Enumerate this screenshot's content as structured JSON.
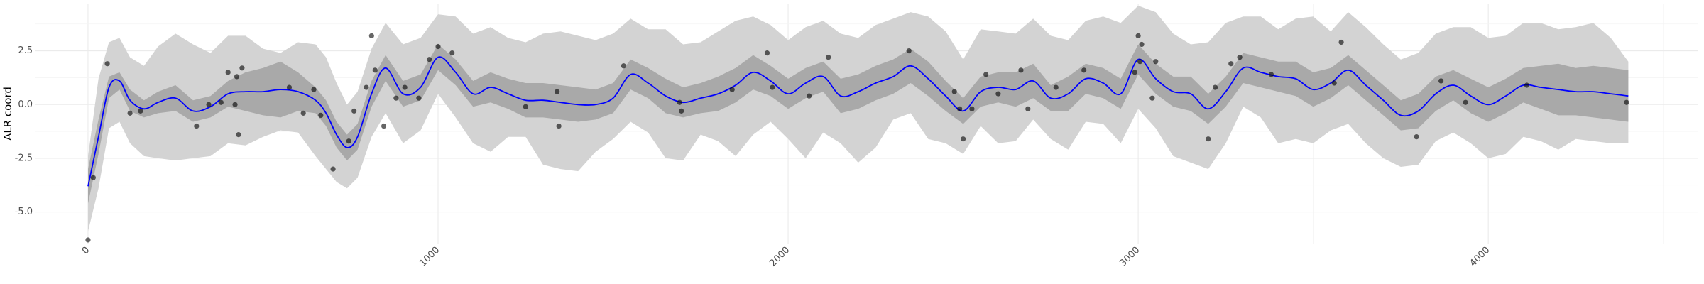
{
  "chart_data": {
    "type": "line",
    "title": "",
    "xlabel": "",
    "ylabel": "ALR coord",
    "xlim": [
      -150,
      4600
    ],
    "ylim": [
      -6.5,
      4.7
    ],
    "x_ticks": [
      {
        "value": 0,
        "label": "0"
      },
      {
        "value": 1000,
        "label": "1000"
      },
      {
        "value": 2000,
        "label": "2000"
      },
      {
        "value": 3000,
        "label": "3000"
      },
      {
        "value": 4000,
        "label": "4000"
      }
    ],
    "y_ticks": [
      {
        "value": -5.0,
        "label": "-5.0"
      },
      {
        "value": -2.5,
        "label": "-2.5"
      },
      {
        "value": 0.0,
        "label": "0.0"
      },
      {
        "value": 2.5,
        "label": "2.5"
      }
    ],
    "grid": true,
    "legend": "none",
    "series": [
      {
        "type": "line",
        "color": "#0000ff",
        "x": [
          0,
          30,
          60,
          90,
          120,
          160,
          200,
          250,
          300,
          350,
          400,
          450,
          500,
          550,
          600,
          650,
          680,
          710,
          740,
          770,
          810,
          850,
          900,
          950,
          1000,
          1050,
          1100,
          1150,
          1200,
          1250,
          1300,
          1350,
          1400,
          1450,
          1500,
          1550,
          1600,
          1650,
          1700,
          1750,
          1800,
          1850,
          1900,
          1950,
          2000,
          2050,
          2100,
          2150,
          2200,
          2250,
          2300,
          2350,
          2400,
          2450,
          2500,
          2550,
          2600,
          2650,
          2700,
          2750,
          2800,
          2850,
          2900,
          2950,
          3000,
          3050,
          3100,
          3150,
          3200,
          3250,
          3300,
          3350,
          3400,
          3450,
          3500,
          3550,
          3600,
          3650,
          3700,
          3750,
          3800,
          3850,
          3900,
          3950,
          4000,
          4050,
          4100,
          4150,
          4200,
          4250,
          4300,
          4350,
          4400
        ],
        "y": [
          -3.8,
          -1.5,
          0.8,
          1.1,
          0.2,
          -0.2,
          0.1,
          0.3,
          -0.3,
          -0.1,
          0.5,
          0.6,
          0.6,
          0.7,
          0.6,
          0.2,
          -0.4,
          -1.4,
          -2.0,
          -1.5,
          0.5,
          1.7,
          0.5,
          0.8,
          2.2,
          1.5,
          0.5,
          0.8,
          0.5,
          0.2,
          0.2,
          0.1,
          0.0,
          0.0,
          0.3,
          1.4,
          1.0,
          0.4,
          0.1,
          0.3,
          0.5,
          0.9,
          1.5,
          1.1,
          0.5,
          1.0,
          1.3,
          0.4,
          0.6,
          1.0,
          1.3,
          1.8,
          1.2,
          0.4,
          -0.3,
          0.6,
          0.8,
          0.7,
          1.1,
          0.3,
          0.5,
          1.2,
          1.0,
          0.5,
          2.1,
          1.2,
          0.6,
          0.5,
          -0.2,
          0.6,
          1.7,
          1.5,
          1.3,
          1.2,
          0.7,
          1.0,
          1.6,
          0.9,
          0.2,
          -0.5,
          -0.3,
          0.5,
          0.9,
          0.4,
          0.0,
          0.4,
          0.9,
          0.8,
          0.7,
          0.6,
          0.6,
          0.5,
          0.4
        ]
      },
      {
        "type": "band",
        "fill": "#a9a9a9",
        "x": [
          0,
          30,
          60,
          90,
          120,
          160,
          200,
          250,
          300,
          350,
          400,
          450,
          500,
          550,
          600,
          650,
          680,
          710,
          740,
          770,
          810,
          850,
          900,
          950,
          1000,
          1050,
          1100,
          1150,
          1200,
          1250,
          1300,
          1350,
          1400,
          1450,
          1500,
          1550,
          1600,
          1650,
          1700,
          1750,
          1800,
          1850,
          1900,
          1950,
          2000,
          2050,
          2100,
          2150,
          2200,
          2250,
          2300,
          2350,
          2400,
          2450,
          2500,
          2550,
          2600,
          2650,
          2700,
          2750,
          2800,
          2850,
          2900,
          2950,
          3000,
          3050,
          3100,
          3150,
          3200,
          3250,
          3300,
          3350,
          3400,
          3450,
          3500,
          3550,
          3600,
          3650,
          3700,
          3750,
          3800,
          3850,
          3900,
          3950,
          4000,
          4050,
          4100,
          4150,
          4200,
          4250,
          4300,
          4350,
          4400
        ],
        "lower": [
          -4.6,
          -2.3,
          0.3,
          0.7,
          -0.3,
          -0.6,
          -0.4,
          -0.3,
          -0.8,
          -0.6,
          -0.1,
          -0.3,
          -0.5,
          -0.6,
          -0.3,
          -0.4,
          -1.0,
          -2.0,
          -2.6,
          -2.1,
          -0.1,
          1.1,
          -0.1,
          0.2,
          1.6,
          0.9,
          -0.1,
          0.1,
          -0.2,
          -0.6,
          -0.6,
          -0.7,
          -0.8,
          -0.7,
          -0.4,
          0.7,
          0.3,
          -0.4,
          -0.6,
          -0.4,
          -0.3,
          0.1,
          0.7,
          0.4,
          -0.2,
          0.3,
          0.6,
          -0.4,
          -0.2,
          0.2,
          0.5,
          1.0,
          0.4,
          -0.3,
          -0.9,
          -0.1,
          0.1,
          -0.1,
          0.3,
          -0.3,
          -0.3,
          0.5,
          0.3,
          -0.2,
          1.4,
          0.5,
          -0.1,
          -0.3,
          -0.9,
          -0.1,
          1.0,
          0.8,
          0.6,
          0.4,
          -0.1,
          0.3,
          0.9,
          0.2,
          -0.5,
          -1.2,
          -1.1,
          -0.3,
          0.2,
          -0.4,
          -0.8,
          -0.4,
          0.1,
          -0.2,
          -0.5,
          -0.5,
          -0.6,
          -0.7,
          -0.8
        ],
        "upper": [
          -3.0,
          -0.7,
          1.3,
          1.5,
          0.7,
          0.2,
          0.6,
          0.9,
          0.2,
          0.4,
          1.1,
          1.5,
          1.7,
          2.0,
          1.5,
          0.8,
          0.2,
          -0.8,
          -1.4,
          -0.9,
          1.1,
          2.3,
          1.1,
          1.4,
          2.8,
          2.1,
          1.1,
          1.5,
          1.2,
          1.0,
          1.0,
          0.9,
          0.8,
          0.7,
          1.0,
          2.1,
          1.7,
          1.2,
          0.8,
          1.0,
          1.3,
          1.7,
          2.3,
          1.8,
          1.2,
          1.7,
          2.0,
          1.2,
          1.4,
          1.8,
          2.1,
          2.6,
          2.0,
          1.1,
          0.3,
          1.3,
          1.5,
          1.5,
          1.9,
          0.9,
          1.3,
          1.9,
          1.7,
          1.2,
          2.8,
          1.9,
          1.3,
          1.3,
          0.5,
          1.3,
          2.4,
          2.2,
          2.0,
          2.0,
          1.5,
          1.7,
          2.3,
          1.6,
          0.9,
          0.2,
          0.5,
          1.3,
          1.6,
          1.2,
          0.8,
          1.2,
          1.7,
          1.8,
          1.9,
          1.7,
          1.8,
          1.7,
          1.6
        ]
      },
      {
        "type": "band",
        "fill": "#d3d3d3",
        "x": [
          0,
          30,
          60,
          90,
          120,
          160,
          200,
          250,
          300,
          350,
          400,
          450,
          500,
          550,
          600,
          650,
          680,
          710,
          740,
          770,
          810,
          850,
          900,
          950,
          1000,
          1050,
          1100,
          1150,
          1200,
          1250,
          1300,
          1350,
          1400,
          1450,
          1500,
          1550,
          1600,
          1650,
          1700,
          1750,
          1800,
          1850,
          1900,
          1950,
          2000,
          2050,
          2100,
          2150,
          2200,
          2250,
          2300,
          2350,
          2400,
          2450,
          2500,
          2550,
          2600,
          2650,
          2700,
          2750,
          2800,
          2850,
          2900,
          2950,
          3000,
          3050,
          3100,
          3150,
          3200,
          3250,
          3300,
          3350,
          3400,
          3450,
          3500,
          3550,
          3600,
          3650,
          3700,
          3750,
          3800,
          3850,
          3900,
          3950,
          4000,
          4050,
          4100,
          4150,
          4200,
          4250,
          4300,
          4350,
          4400
        ],
        "lower": [
          -5.9,
          -3.9,
          -1.1,
          -0.8,
          -1.8,
          -2.4,
          -2.5,
          -2.6,
          -2.5,
          -2.4,
          -1.8,
          -1.9,
          -1.5,
          -1.2,
          -1.3,
          -2.4,
          -3.0,
          -3.6,
          -3.9,
          -3.4,
          -1.5,
          -0.4,
          -1.8,
          -1.2,
          0.5,
          -0.6,
          -1.8,
          -2.2,
          -1.5,
          -1.5,
          -2.8,
          -3.0,
          -3.1,
          -2.2,
          -1.6,
          -0.8,
          -1.3,
          -2.5,
          -2.6,
          -1.4,
          -1.7,
          -2.4,
          -1.4,
          -0.8,
          -1.6,
          -2.5,
          -1.3,
          -1.8,
          -2.7,
          -2.0,
          -0.7,
          -0.4,
          -1.6,
          -1.8,
          -2.3,
          -1.0,
          -1.8,
          -1.7,
          -0.7,
          -1.6,
          -2.1,
          -0.8,
          -0.9,
          -1.8,
          -0.2,
          -1.1,
          -2.4,
          -2.7,
          -3.0,
          -1.8,
          -0.1,
          -0.6,
          -1.8,
          -1.6,
          -1.8,
          -1.2,
          -0.9,
          -1.8,
          -2.5,
          -2.9,
          -2.8,
          -1.7,
          -1.3,
          -1.8,
          -2.5,
          -2.3,
          -1.5,
          -1.7,
          -2.1,
          -1.6,
          -1.7,
          -1.8,
          -1.8
        ],
        "upper": [
          -2.4,
          1.2,
          2.9,
          3.1,
          2.2,
          1.8,
          2.7,
          3.3,
          2.8,
          2.4,
          3.2,
          3.2,
          2.6,
          2.4,
          2.9,
          2.8,
          2.2,
          1.0,
          0.0,
          0.6,
          2.6,
          3.8,
          2.8,
          3.1,
          4.2,
          4.1,
          3.3,
          3.6,
          3.1,
          2.9,
          3.3,
          3.4,
          3.2,
          3.0,
          3.3,
          4.0,
          3.5,
          3.5,
          2.8,
          2.9,
          3.4,
          3.9,
          4.1,
          3.7,
          3.0,
          3.6,
          3.9,
          3.3,
          3.1,
          3.7,
          4.0,
          4.3,
          4.1,
          3.4,
          2.1,
          3.5,
          3.4,
          3.3,
          4.0,
          3.2,
          3.0,
          3.9,
          4.1,
          3.8,
          4.6,
          4.3,
          3.3,
          2.8,
          2.9,
          3.8,
          4.1,
          4.1,
          3.5,
          4.0,
          4.1,
          3.4,
          4.3,
          3.6,
          2.8,
          2.1,
          2.4,
          3.3,
          3.6,
          3.6,
          3.1,
          3.2,
          3.8,
          3.8,
          3.5,
          3.6,
          3.8,
          3.1,
          2.0
        ]
      }
    ],
    "points": [
      {
        "x": 0,
        "y": -6.3
      },
      {
        "x": 15,
        "y": -3.4
      },
      {
        "x": 55,
        "y": 1.9
      },
      {
        "x": 120,
        "y": -0.4
      },
      {
        "x": 150,
        "y": -0.3
      },
      {
        "x": 310,
        "y": -1.0
      },
      {
        "x": 345,
        "y": 0.0
      },
      {
        "x": 380,
        "y": 0.1
      },
      {
        "x": 400,
        "y": 1.5
      },
      {
        "x": 420,
        "y": 0.0
      },
      {
        "x": 425,
        "y": 1.3
      },
      {
        "x": 430,
        "y": -1.4
      },
      {
        "x": 440,
        "y": 1.7
      },
      {
        "x": 575,
        "y": 0.8
      },
      {
        "x": 615,
        "y": -0.4
      },
      {
        "x": 645,
        "y": 0.7
      },
      {
        "x": 665,
        "y": -0.5
      },
      {
        "x": 700,
        "y": -3.0
      },
      {
        "x": 745,
        "y": -1.7
      },
      {
        "x": 760,
        "y": -0.3
      },
      {
        "x": 795,
        "y": 0.8
      },
      {
        "x": 810,
        "y": 3.2
      },
      {
        "x": 820,
        "y": 1.6
      },
      {
        "x": 845,
        "y": -1.0
      },
      {
        "x": 880,
        "y": 0.3
      },
      {
        "x": 905,
        "y": 0.8
      },
      {
        "x": 945,
        "y": 0.3
      },
      {
        "x": 975,
        "y": 2.1
      },
      {
        "x": 1000,
        "y": 2.7
      },
      {
        "x": 1040,
        "y": 2.4
      },
      {
        "x": 1250,
        "y": -0.1
      },
      {
        "x": 1340,
        "y": 0.6
      },
      {
        "x": 1345,
        "y": -1.0
      },
      {
        "x": 1530,
        "y": 1.8
      },
      {
        "x": 1690,
        "y": 0.1
      },
      {
        "x": 1695,
        "y": -0.3
      },
      {
        "x": 1840,
        "y": 0.7
      },
      {
        "x": 1940,
        "y": 2.4
      },
      {
        "x": 1955,
        "y": 0.8
      },
      {
        "x": 2060,
        "y": 0.4
      },
      {
        "x": 2115,
        "y": 2.2
      },
      {
        "x": 2345,
        "y": 2.5
      },
      {
        "x": 2475,
        "y": 0.6
      },
      {
        "x": 2490,
        "y": -0.2
      },
      {
        "x": 2500,
        "y": -1.6
      },
      {
        "x": 2525,
        "y": -0.2
      },
      {
        "x": 2565,
        "y": 1.4
      },
      {
        "x": 2600,
        "y": 0.5
      },
      {
        "x": 2665,
        "y": 1.6
      },
      {
        "x": 2685,
        "y": -0.2
      },
      {
        "x": 2765,
        "y": 0.8
      },
      {
        "x": 2845,
        "y": 1.6
      },
      {
        "x": 2990,
        "y": 1.5
      },
      {
        "x": 3000,
        "y": 3.2
      },
      {
        "x": 3005,
        "y": 2.0
      },
      {
        "x": 3010,
        "y": 2.8
      },
      {
        "x": 3040,
        "y": 0.3
      },
      {
        "x": 3050,
        "y": 2.0
      },
      {
        "x": 3200,
        "y": -1.6
      },
      {
        "x": 3220,
        "y": 0.8
      },
      {
        "x": 3265,
        "y": 1.9
      },
      {
        "x": 3290,
        "y": 2.2
      },
      {
        "x": 3380,
        "y": 1.4
      },
      {
        "x": 3560,
        "y": 1.0
      },
      {
        "x": 3580,
        "y": 2.9
      },
      {
        "x": 3795,
        "y": -1.5
      },
      {
        "x": 3865,
        "y": 1.1
      },
      {
        "x": 3935,
        "y": 0.1
      },
      {
        "x": 4110,
        "y": 0.9
      },
      {
        "x": 4395,
        "y": 0.1
      }
    ]
  }
}
